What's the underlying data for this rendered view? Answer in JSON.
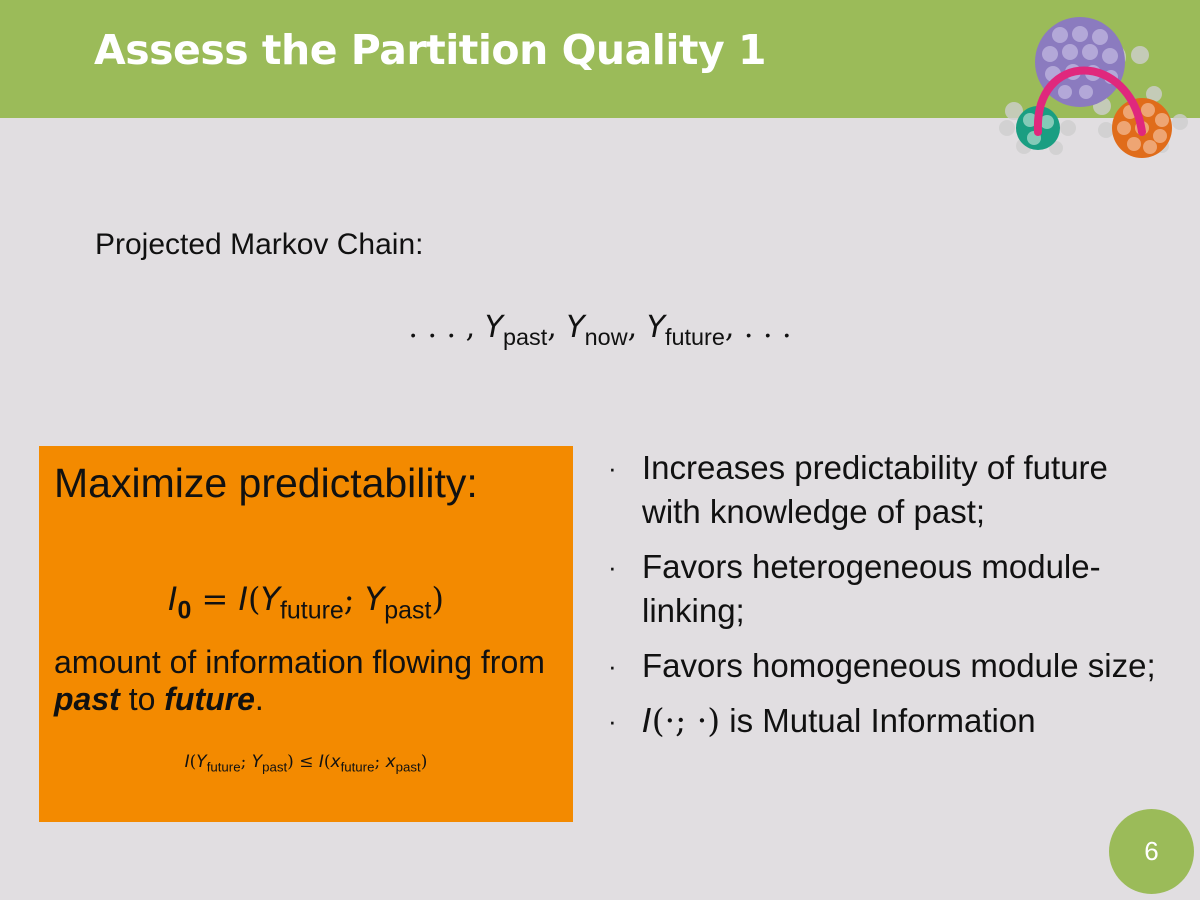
{
  "header": {
    "title": "Assess the Partition Quality 1"
  },
  "colors": {
    "header_green": "#9bbb59",
    "box_orange": "#f38a00",
    "background": "#e1dee1"
  },
  "logo": {
    "icon": "network-modules-logo-icon"
  },
  "subtitle": "Projected Markov Chain:",
  "chain": {
    "lead": ". . . ,",
    "y": "Y",
    "sub_past": "past",
    "sub_now": "now",
    "sub_future": "future",
    "sep": ",",
    "trail": ", . . ."
  },
  "box": {
    "title": "Maximize predictability:",
    "formula": {
      "lhs": "I",
      "lhs_sub": "0",
      "eq": " = ",
      "fn": "I",
      "open": "(",
      "y": "Y",
      "sub_future": "future",
      "semi": ";",
      "sub_past": "past",
      "close": ")"
    },
    "desc_pre": "amount of information flowing from ",
    "desc_em1": "past",
    "desc_mid": " to ",
    "desc_em2": "future",
    "desc_end": ".",
    "ineq": {
      "fn": "I",
      "y": "Y",
      "x": "x",
      "sub_future": "future",
      "sub_past": "past",
      "leq": " ≤ "
    }
  },
  "bullets": [
    "Increases predictability of future with knowledge of past;",
    "Favors heterogeneous module-linking;",
    "Favors homogeneous module size;"
  ],
  "bullet_mi": {
    "fn": "I",
    "args": "(·; ·)",
    "text": " is Mutual Information"
  },
  "page_number": "6"
}
